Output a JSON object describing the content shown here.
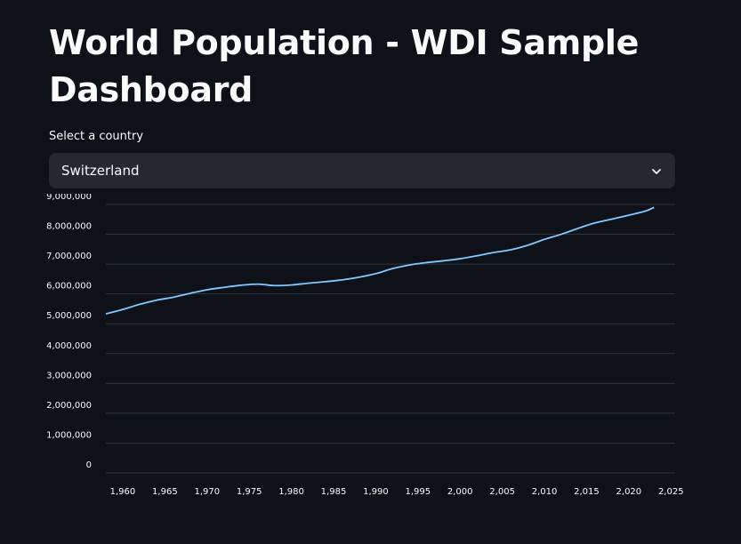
{
  "page": {
    "title": "World Population - WDI Sample Dashboard"
  },
  "selector": {
    "label": "Select a country",
    "selected": "Switzerland",
    "icon": "chevron-down-icon"
  },
  "colors": {
    "background": "#0e1117",
    "line": "#83c9ff",
    "grid": "#31333f",
    "select_bg": "#262730"
  },
  "chart_data": {
    "type": "line",
    "title": "",
    "xlabel": "",
    "ylabel": "",
    "xlim": [
      1958,
      2025.5
    ],
    "ylim": [
      0,
      9000000
    ],
    "grid": true,
    "x_ticks": [
      1960,
      1965,
      1970,
      1975,
      1980,
      1985,
      1990,
      1995,
      2000,
      2005,
      2010,
      2015,
      2020,
      2025
    ],
    "y_ticks": [
      0,
      1000000,
      2000000,
      3000000,
      4000000,
      5000000,
      6000000,
      7000000,
      8000000,
      9000000
    ],
    "x_tick_labels": [
      "1,960",
      "1,965",
      "1,970",
      "1,975",
      "1,980",
      "1,985",
      "1,990",
      "1,995",
      "2,000",
      "2,005",
      "2,010",
      "2,015",
      "2,020",
      "2,025"
    ],
    "y_tick_labels": [
      "0",
      "1,000,000",
      "2,000,000",
      "3,000,000",
      "4,000,000",
      "5,000,000",
      "6,000,000",
      "7,000,000",
      "8,000,000",
      "9,000,000"
    ],
    "series": [
      {
        "x": [
          1958,
          1960,
          1962,
          1964,
          1966,
          1968,
          1970,
          1972,
          1974,
          1976,
          1978,
          1980,
          1982,
          1984,
          1986,
          1988,
          1990,
          1992,
          1994,
          1996,
          1998,
          2000,
          2002,
          2004,
          2006,
          2008,
          2010,
          2012,
          2014,
          2016,
          2018,
          2020,
          2022,
          2023
        ],
        "y": [
          5330000,
          5480000,
          5650000,
          5790000,
          5890000,
          6020000,
          6140000,
          6220000,
          6290000,
          6330000,
          6280000,
          6300000,
          6360000,
          6410000,
          6470000,
          6560000,
          6680000,
          6850000,
          6970000,
          7050000,
          7110000,
          7180000,
          7280000,
          7390000,
          7480000,
          7630000,
          7830000,
          8000000,
          8200000,
          8380000,
          8510000,
          8640000,
          8780000,
          8900000
        ]
      }
    ]
  }
}
